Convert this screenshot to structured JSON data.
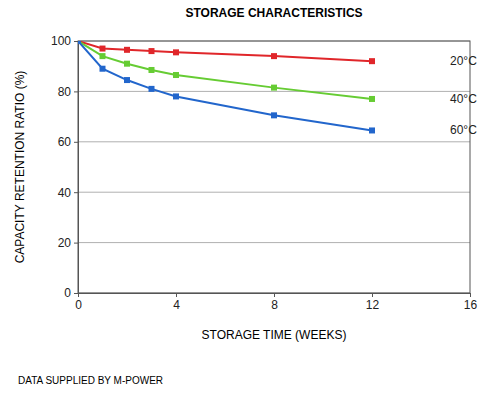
{
  "chart_data": {
    "type": "line",
    "title": "STORAGE CHARACTERISTICS",
    "x_label": "STORAGE TIME (WEEKS)",
    "y_label": "CAPACITY RETENTION RATIO (%)",
    "annotations": [
      "DATA SUPPLIED BY M-POWER"
    ],
    "x": [
      0,
      1,
      2,
      3,
      4,
      8,
      12
    ],
    "series": [
      {
        "name": "20°C",
        "color": "#e0262a",
        "marker": "square",
        "values": [
          100,
          97,
          96.5,
          96,
          95.5,
          94,
          92
        ]
      },
      {
        "name": "40°C",
        "color": "#66cc33",
        "marker": "square",
        "values": [
          100,
          94,
          91,
          88.5,
          86.5,
          81.5,
          77
        ]
      },
      {
        "name": "60°C",
        "color": "#2266cc",
        "marker": "square",
        "values": [
          100,
          89,
          84.5,
          81,
          78,
          70.5,
          64.5
        ]
      }
    ],
    "xlim": [
      0,
      16
    ],
    "xticks": [
      0,
      4,
      8,
      12,
      16
    ],
    "ylim": [
      0,
      100
    ],
    "yticks": [
      0,
      20,
      40,
      60,
      80,
      100
    ],
    "grid": true
  }
}
